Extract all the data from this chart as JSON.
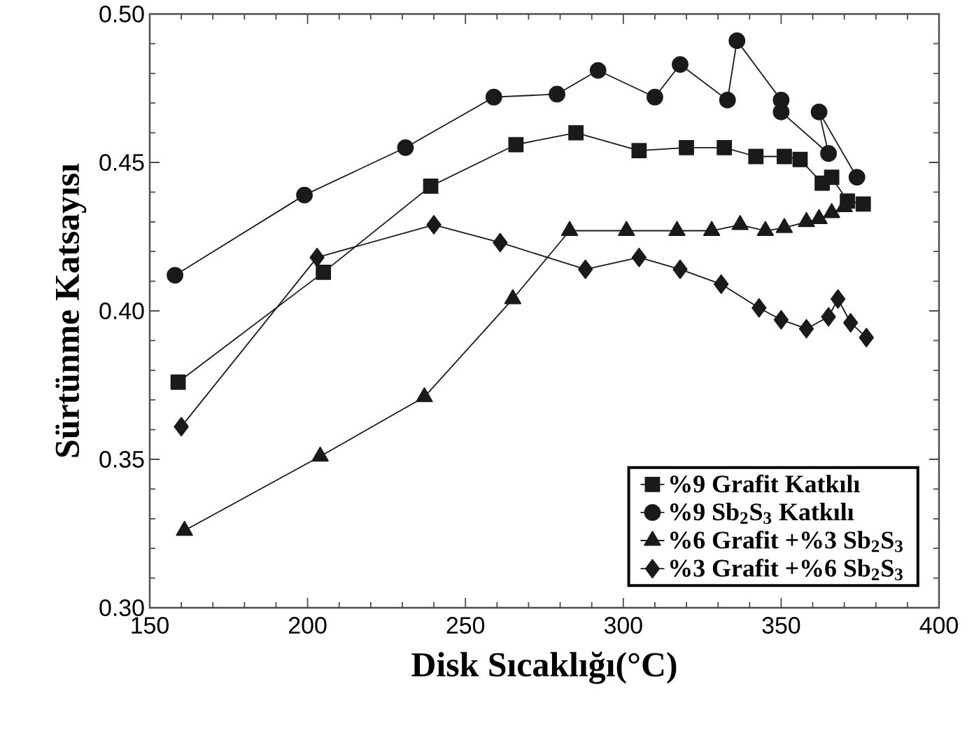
{
  "chart_data": {
    "type": "line",
    "xlabel": "Disk Sıcaklığı(°C)",
    "ylabel": "Sürtünme Katsayısı",
    "xlim": [
      150,
      400
    ],
    "xticks": [
      150,
      200,
      250,
      300,
      350,
      400
    ],
    "ylim": [
      0.3,
      0.5
    ],
    "yticks": [
      {
        "value": 0.3,
        "label": "0.30"
      },
      {
        "value": 0.35,
        "label": "0.35"
      },
      {
        "value": 0.4,
        "label": "0.40"
      },
      {
        "value": 0.45,
        "label": "0.45"
      },
      {
        "value": 0.5,
        "label": "0.50"
      }
    ],
    "grid": false,
    "legend": "bottom right",
    "line_style": "solid",
    "series": [
      {
        "name": "%9 Grafit Katkılı",
        "color": "#1a1a1a",
        "marker": "square",
        "x": [
          159,
          205,
          239,
          266,
          285,
          305,
          320,
          332,
          342,
          351,
          356,
          363,
          366,
          371,
          376
        ],
        "values": [
          0.376,
          0.413,
          0.442,
          0.456,
          0.46,
          0.454,
          0.455,
          0.455,
          0.452,
          0.452,
          0.451,
          0.443,
          0.445,
          0.437,
          0.436
        ]
      },
      {
        "name": "%9 Sb$_{2}$S$_{3}$ Katkılı",
        "color": "#1a1a1a",
        "marker": "circle",
        "x": [
          158,
          199,
          231,
          259,
          279,
          292,
          310,
          318,
          333,
          336,
          350,
          350,
          365,
          362,
          374
        ],
        "values": [
          0.412,
          0.439,
          0.455,
          0.472,
          0.473,
          0.481,
          0.472,
          0.483,
          0.471,
          0.491,
          0.471,
          0.467,
          0.453,
          0.467,
          0.445
        ]
      },
      {
        "name": "%6 Grafit +%3 Sb$_{2}$S$_{3}$",
        "color": "#1a1a1a",
        "marker": "triangle",
        "x": [
          161,
          204,
          237,
          265,
          283,
          301,
          317,
          328,
          337,
          345,
          351,
          358,
          362,
          366,
          370
        ],
        "values": [
          0.326,
          0.351,
          0.371,
          0.404,
          0.427,
          0.427,
          0.427,
          0.427,
          0.429,
          0.427,
          0.428,
          0.43,
          0.431,
          0.433,
          0.435
        ]
      },
      {
        "name": "%3 Grafit +%6 Sb$_{2}$S$_{3}$",
        "color": "#1a1a1a",
        "marker": "diamond",
        "x": [
          160,
          203,
          240,
          261,
          288,
          305,
          318,
          331,
          343,
          350,
          358,
          365,
          368,
          372,
          377
        ],
        "values": [
          0.361,
          0.418,
          0.429,
          0.423,
          0.414,
          0.418,
          0.414,
          0.409,
          0.401,
          0.397,
          0.394,
          0.398,
          0.404,
          0.396,
          0.391
        ]
      }
    ]
  }
}
